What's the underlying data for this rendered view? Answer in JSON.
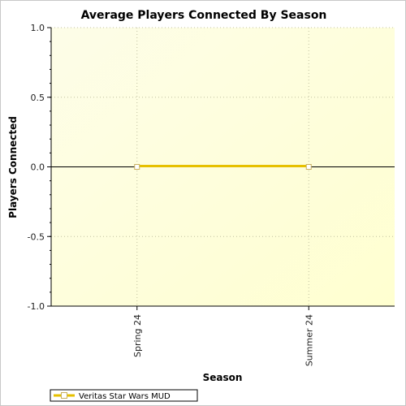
{
  "chart_data": {
    "type": "line",
    "title": "Average Players Connected By Season",
    "xlabel": "Season",
    "ylabel": "Players Connected",
    "categories": [
      "Spring 24",
      "Summer 24"
    ],
    "series": [
      {
        "name": "Veritas Star Wars MUD",
        "values": [
          0,
          0
        ],
        "color": "#e6c000",
        "marker_fill": "#ffffff"
      }
    ],
    "ylim": [
      -1.0,
      1.0
    ],
    "yticks": [
      "1.0",
      "0.5",
      "0.0",
      "-0.5",
      "-1.0"
    ],
    "grid": true,
    "legend_position": "bottom-left",
    "plot_background": [
      "#fdfde8",
      "#ffffd0"
    ]
  }
}
